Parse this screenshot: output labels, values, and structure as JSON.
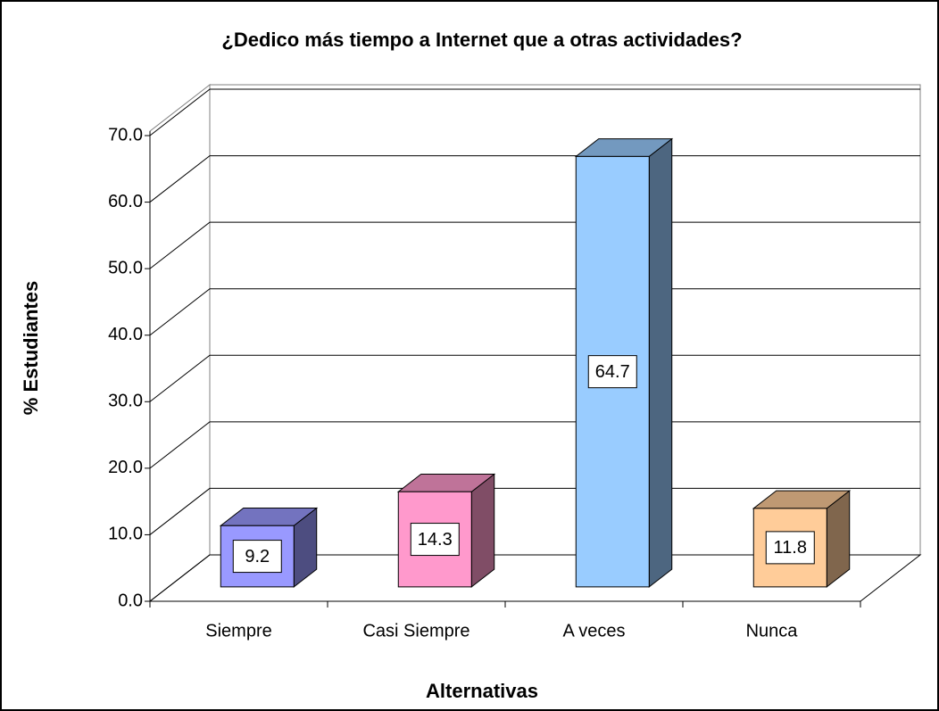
{
  "chart_data": {
    "type": "bar3d",
    "title": "¿Dedico más tiempo a Internet que a otras actividades?",
    "y_label": "% Estudiantes",
    "x_label": "Alternativas",
    "categories": [
      "Siempre",
      "Casi Siempre",
      "A veces",
      "Nunca"
    ],
    "values": [
      9.2,
      14.3,
      64.7,
      11.8
    ],
    "colors": [
      "#9999ff",
      "#ff99cc",
      "#99ccff",
      "#ffcc99"
    ],
    "ylim": [
      0,
      70
    ],
    "yticks": [
      {
        "value": 0,
        "label": "0.0"
      },
      {
        "value": 10,
        "label": "10.0"
      },
      {
        "value": 20,
        "label": "20.0"
      },
      {
        "value": 30,
        "label": "30.0"
      },
      {
        "value": 40,
        "label": "40.0"
      },
      {
        "value": 50,
        "label": "50.0"
      },
      {
        "value": 60,
        "label": "60.0"
      },
      {
        "value": 70,
        "label": "70.0"
      }
    ],
    "grid": true
  }
}
